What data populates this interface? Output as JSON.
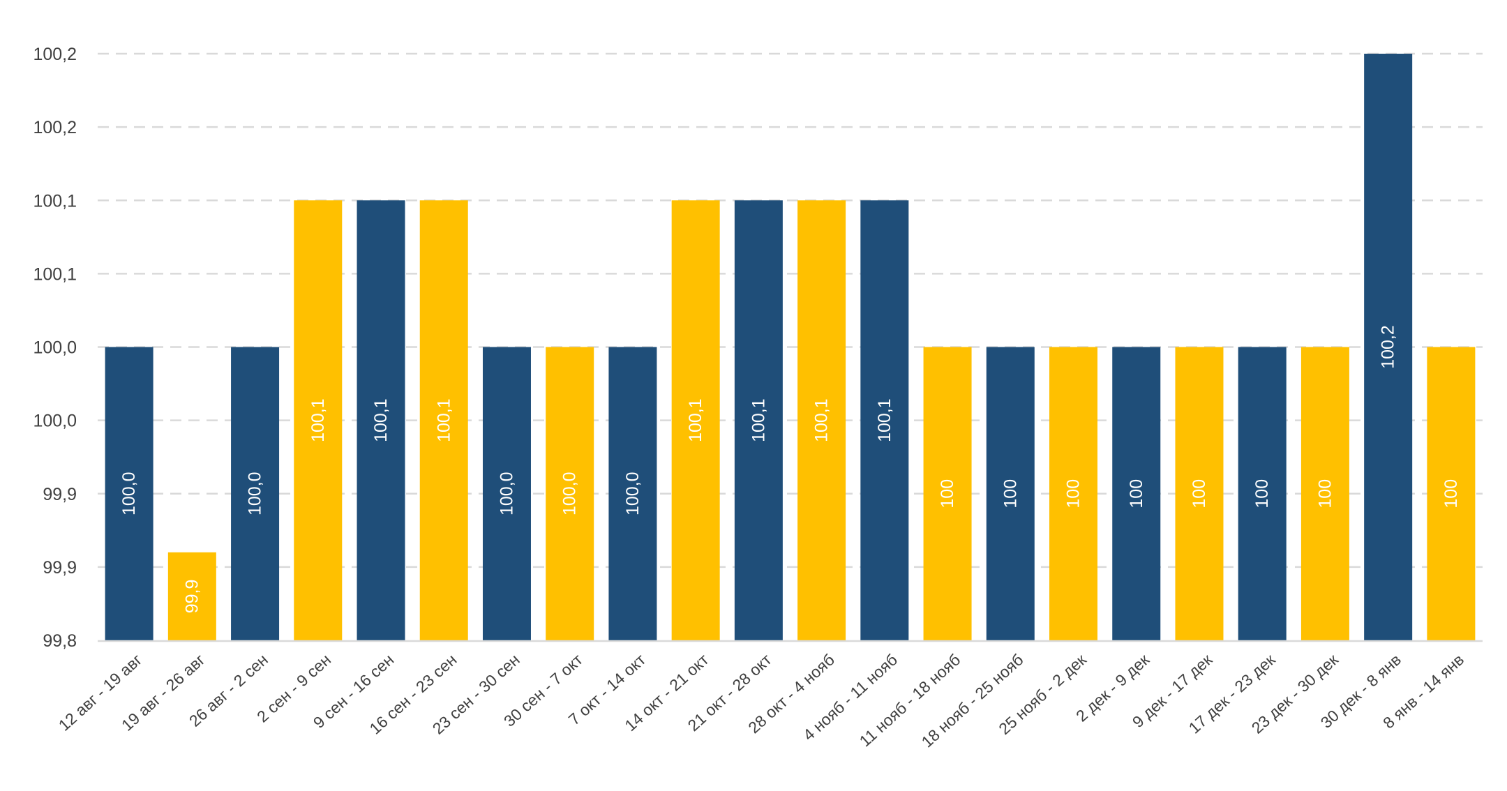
{
  "chart_data": {
    "type": "bar",
    "y_ticks": [
      "99,8",
      "99,9",
      "99,9",
      "100,0",
      "100,0",
      "100,1",
      "100,1",
      "100,2",
      "100,2"
    ],
    "ylim": [
      99.8,
      100.2
    ],
    "grid": true,
    "gridline_style": "dashed",
    "legend": "none",
    "colors": {
      "dark": "#1f4e79",
      "yellow": "#ffc000",
      "label": "#ffffff",
      "grid": "#d9d9d9",
      "tick": "#404040"
    },
    "bars": [
      {
        "category": "12 авг - 19 авг",
        "value": 100.0,
        "label": "100,0",
        "color": "dark"
      },
      {
        "category": "19 авг - 26 авг",
        "value": 99.86,
        "label": "99,9",
        "color": "yellow"
      },
      {
        "category": "26 авг - 2 сен",
        "value": 100.0,
        "label": "100,0",
        "color": "dark"
      },
      {
        "category": "2 сен - 9 сен",
        "value": 100.1,
        "label": "100,1",
        "color": "yellow"
      },
      {
        "category": "9 сен - 16 сен",
        "value": 100.1,
        "label": "100,1",
        "color": "dark"
      },
      {
        "category": "16 сен - 23 сен",
        "value": 100.1,
        "label": "100,1",
        "color": "yellow"
      },
      {
        "category": "23 сен - 30 сен",
        "value": 100.0,
        "label": "100,0",
        "color": "dark"
      },
      {
        "category": "30 сен - 7 окт",
        "value": 100.0,
        "label": "100,0",
        "color": "yellow"
      },
      {
        "category": "7 окт - 14 окт",
        "value": 100.0,
        "label": "100,0",
        "color": "dark"
      },
      {
        "category": "14 окт - 21 окт",
        "value": 100.1,
        "label": "100,1",
        "color": "yellow"
      },
      {
        "category": "21 окт - 28 окт",
        "value": 100.1,
        "label": "100,1",
        "color": "dark"
      },
      {
        "category": "28 окт - 4 нояб",
        "value": 100.1,
        "label": "100,1",
        "color": "yellow"
      },
      {
        "category": "4 нояб - 11 нояб",
        "value": 100.1,
        "label": "100,1",
        "color": "dark"
      },
      {
        "category": "11 нояб - 18 нояб",
        "value": 100.0,
        "label": "100",
        "color": "yellow"
      },
      {
        "category": "18 нояб - 25 нояб",
        "value": 100.0,
        "label": "100",
        "color": "dark"
      },
      {
        "category": "25 нояб - 2 дек",
        "value": 100.0,
        "label": "100",
        "color": "yellow"
      },
      {
        "category": "2 дек - 9 дек",
        "value": 100.0,
        "label": "100",
        "color": "dark"
      },
      {
        "category": "9 дек - 17 дек",
        "value": 100.0,
        "label": "100",
        "color": "yellow"
      },
      {
        "category": "17 дек - 23 дек",
        "value": 100.0,
        "label": "100",
        "color": "dark"
      },
      {
        "category": "23 дек - 30 дек",
        "value": 100.0,
        "label": "100",
        "color": "yellow"
      },
      {
        "category": "30 дек - 8 янв",
        "value": 100.2,
        "label": "100,2",
        "color": "dark"
      },
      {
        "category": "8 янв - 14 янв",
        "value": 100.0,
        "label": "100",
        "color": "yellow"
      }
    ]
  }
}
